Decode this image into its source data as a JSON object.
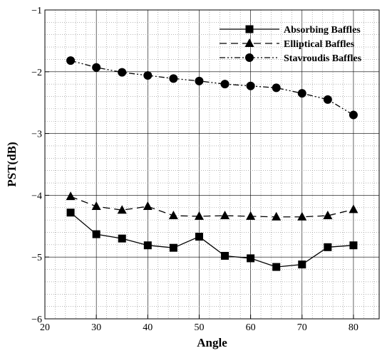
{
  "chart_data": {
    "type": "line",
    "title": "",
    "xlabel": "Angle",
    "ylabel": "PST(dB)",
    "xlim": [
      20,
      85
    ],
    "ylim": [
      -6,
      -1
    ],
    "x_major_ticks": [
      20,
      30,
      40,
      50,
      60,
      70,
      80
    ],
    "y_major_ticks": [
      -6,
      -5,
      -4,
      -3,
      -2,
      -1
    ],
    "x_tick_labels": [
      "20",
      "30",
      "40",
      "50",
      "60",
      "70",
      "80"
    ],
    "y_tick_labels": [
      "−6",
      "−5",
      "−4",
      "−3",
      "−2",
      "−1"
    ],
    "grid": "major and minor, dotted",
    "legend_position": "top-right",
    "x": [
      25,
      30,
      35,
      40,
      45,
      50,
      55,
      60,
      65,
      70,
      75,
      80
    ],
    "series": [
      {
        "name": "Absorbing Baffles",
        "marker": "square",
        "line_style": "solid",
        "values": [
          -4.28,
          -4.63,
          -4.7,
          -4.81,
          -4.85,
          -4.67,
          -4.98,
          -5.02,
          -5.16,
          -5.12,
          -4.84,
          -4.81
        ]
      },
      {
        "name": "Elliptical Baffles",
        "marker": "triangle",
        "line_style": "dashed",
        "values": [
          -4.02,
          -4.18,
          -4.24,
          -4.18,
          -4.33,
          -4.34,
          -4.33,
          -4.34,
          -4.35,
          -4.35,
          -4.33,
          -4.23
        ]
      },
      {
        "name": "Stavroudis Baffles",
        "marker": "circle",
        "line_style": "dash-dot-dot",
        "values": [
          -1.82,
          -1.93,
          -2.01,
          -2.06,
          -2.11,
          -2.15,
          -2.2,
          -2.23,
          -2.26,
          -2.35,
          -2.45,
          -2.7
        ]
      }
    ]
  }
}
